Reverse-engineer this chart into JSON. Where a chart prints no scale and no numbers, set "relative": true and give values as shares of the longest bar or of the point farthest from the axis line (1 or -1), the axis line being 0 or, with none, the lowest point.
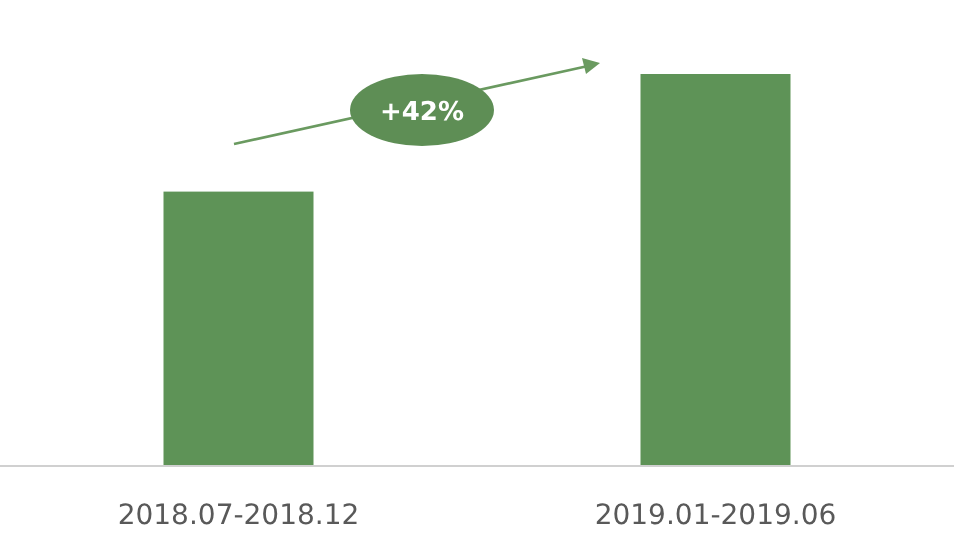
{
  "chart_data": {
    "type": "bar",
    "relative": true,
    "categories": [
      "2018.07-2018.12",
      "2019.01-2019.06"
    ],
    "values": [
      0.7,
      1
    ],
    "color": "#5e9357",
    "annotations": [
      "+42%"
    ]
  }
}
